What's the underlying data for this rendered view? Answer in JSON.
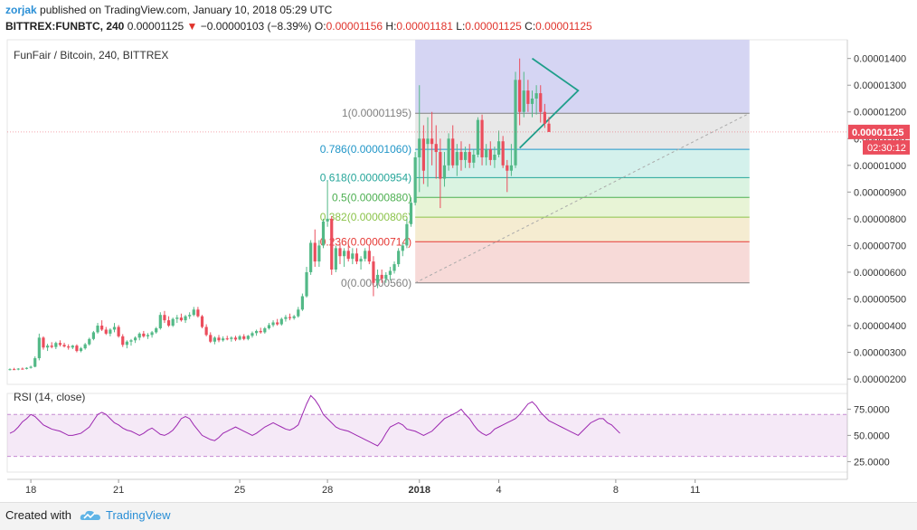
{
  "header": {
    "author": "zorjak",
    "published_text": "published on TradingView.com, January 10, 2018 05:29 UTC",
    "symbol": "BITTREX:FUNBTC, 240",
    "last": "0.00001125",
    "change_arrow": "▼",
    "change": "−0.00000103 (−8.39%)",
    "o_label": "O:",
    "o_value": "0.00001156",
    "h_label": "H:",
    "h_value": "0.00001181",
    "l_label": "L:",
    "l_value": "0.00001125",
    "c_label": "C:",
    "c_value": "0.00001125"
  },
  "chart_data": {
    "type": "candlestick",
    "title": "FunFair / Bitcoin, 240, BITTREX",
    "ylim": [
      1.8e-06,
      1.47e-05
    ],
    "y_ticks": [
      "0.00000200",
      "0.00000300",
      "0.00000400",
      "0.00000500",
      "0.00000600",
      "0.00000700",
      "0.00000800",
      "0.00000900",
      "0.00001000",
      "0.00001100",
      "0.00001200",
      "0.00001300",
      "0.00001400"
    ],
    "x_ticks": [
      "18",
      "21",
      "25",
      "28",
      "2018",
      "4",
      "8",
      "11"
    ],
    "last_price_label": "0.00001125",
    "countdown": "02:30:12",
    "fib_levels": [
      {
        "label": "1(0.00001195)",
        "price": 1.195e-05,
        "color": "#808080"
      },
      {
        "label": "0.786(0.00001060)",
        "price": 1.06e-05,
        "color": "#2196c8"
      },
      {
        "label": "0.618(0.00000954)",
        "price": 9.54e-06,
        "color": "#26a69a"
      },
      {
        "label": "0.5(0.00000880)",
        "price": 8.8e-06,
        "color": "#4caf50"
      },
      {
        "label": "0.382(0.00000806)",
        "price": 8.06e-06,
        "color": "#8bc34a"
      },
      {
        "label": "0.236(0.00000714)",
        "price": 7.14e-06,
        "color": "#e53935"
      },
      {
        "label": "0(0.00000560)",
        "price": 5.6e-06,
        "color": "#808080"
      }
    ],
    "candles": [
      [
        2.35e-06,
        2.4e-06,
        2.32e-06,
        2.37e-06
      ],
      [
        2.37e-06,
        2.42e-06,
        2.34e-06,
        2.36e-06
      ],
      [
        2.36e-06,
        2.41e-06,
        2.33e-06,
        2.39e-06
      ],
      [
        2.39e-06,
        2.43e-06,
        2.35e-06,
        2.38e-06
      ],
      [
        2.38e-06,
        2.44e-06,
        2.36e-06,
        2.42e-06
      ],
      [
        2.42e-06,
        2.5e-06,
        2.39e-06,
        2.46e-06
      ],
      [
        2.46e-06,
        2.85e-06,
        2.44e-06,
        2.78e-06
      ],
      [
        2.78e-06,
        3.7e-06,
        2.7e-06,
        3.55e-06
      ],
      [
        3.55e-06,
        3.6e-06,
        3.1e-06,
        3.18e-06
      ],
      [
        3.18e-06,
        3.32e-06,
        3.05e-06,
        3.25e-06
      ],
      [
        3.25e-06,
        3.38e-06,
        3.15e-06,
        3.2e-06
      ],
      [
        3.2e-06,
        3.4e-06,
        3.12e-06,
        3.35e-06
      ],
      [
        3.35e-06,
        3.45e-06,
        3.22e-06,
        3.28e-06
      ],
      [
        3.28e-06,
        3.36e-06,
        3.18e-06,
        3.22e-06
      ],
      [
        3.22e-06,
        3.3e-06,
        3.1e-06,
        3.18e-06
      ],
      [
        3.18e-06,
        3.28e-06,
        3.12e-06,
        3.25e-06
      ],
      [
        3.25e-06,
        3.3e-06,
        3e-06,
        3.05e-06
      ],
      [
        3.05e-06,
        3.2e-06,
        3e-06,
        3.15e-06
      ],
      [
        3.15e-06,
        3.35e-06,
        3.1e-06,
        3.3e-06
      ],
      [
        3.3e-06,
        3.55e-06,
        3.25e-06,
        3.5e-06
      ],
      [
        3.5e-06,
        3.8e-06,
        3.45e-06,
        3.75e-06
      ],
      [
        3.75e-06,
        4.1e-06,
        3.7e-06,
        4e-06
      ],
      [
        4e-06,
        4.2e-06,
        3.8e-06,
        3.85e-06
      ],
      [
        3.85e-06,
        3.95e-06,
        3.65e-06,
        3.7e-06
      ],
      [
        3.7e-06,
        3.9e-06,
        3.6e-06,
        3.85e-06
      ],
      [
        3.85e-06,
        4.1e-06,
        3.75e-06,
        3.95e-06
      ],
      [
        3.95e-06,
        4.02e-06,
        3.55e-06,
        3.6e-06
      ],
      [
        3.6e-06,
        3.68e-06,
        3.2e-06,
        3.28e-06
      ],
      [
        3.28e-06,
        3.45e-06,
        3.15e-06,
        3.4e-06
      ],
      [
        3.4e-06,
        3.5e-06,
        3.25e-06,
        3.45e-06
      ],
      [
        3.45e-06,
        3.6e-06,
        3.35e-06,
        3.55e-06
      ],
      [
        3.55e-06,
        3.75e-06,
        3.45e-06,
        3.7e-06
      ],
      [
        3.7e-06,
        3.8e-06,
        3.55e-06,
        3.6e-06
      ],
      [
        3.6e-06,
        3.72e-06,
        3.5e-06,
        3.65e-06
      ],
      [
        3.65e-06,
        3.8e-06,
        3.55e-06,
        3.75e-06
      ],
      [
        3.75e-06,
        3.95e-06,
        3.7e-06,
        3.9e-06
      ],
      [
        3.9e-06,
        4.5e-06,
        3.85e-06,
        4.4e-06
      ],
      [
        4.4e-06,
        4.55e-06,
        4.1e-06,
        4.2e-06
      ],
      [
        4.2e-06,
        4.35e-06,
        3.95e-06,
        4e-06
      ],
      [
        4e-06,
        4.3e-06,
        3.95e-06,
        4.25e-06
      ],
      [
        4.25e-06,
        4.4e-06,
        4.1e-06,
        4.3e-06
      ],
      [
        4.3e-06,
        4.45e-06,
        4.15e-06,
        4.2e-06
      ],
      [
        4.2e-06,
        4.4e-06,
        4.1e-06,
        4.35e-06
      ],
      [
        4.35e-06,
        4.5e-06,
        4.25e-06,
        4.4e-06
      ],
      [
        4.4e-06,
        4.7e-06,
        4.35e-06,
        4.6e-06
      ],
      [
        4.6e-06,
        4.7e-06,
        4.3e-06,
        4.35e-06
      ],
      [
        4.35e-06,
        4.4e-06,
        3.9e-06,
        3.95e-06
      ],
      [
        3.95e-06,
        4.05e-06,
        3.6e-06,
        3.65e-06
      ],
      [
        3.65e-06,
        3.75e-06,
        3.35e-06,
        3.4e-06
      ],
      [
        3.4e-06,
        3.6e-06,
        3.3e-06,
        3.55e-06
      ],
      [
        3.55e-06,
        3.65e-06,
        3.38e-06,
        3.45e-06
      ],
      [
        3.45e-06,
        3.6e-06,
        3.4e-06,
        3.52e-06
      ],
      [
        3.52e-06,
        3.62e-06,
        3.45e-06,
        3.5e-06
      ],
      [
        3.5e-06,
        3.6e-06,
        3.4e-06,
        3.55e-06
      ],
      [
        3.55e-06,
        3.62e-06,
        3.42e-06,
        3.48e-06
      ],
      [
        3.48e-06,
        3.65e-06,
        3.45e-06,
        3.6e-06
      ],
      [
        3.6e-06,
        3.68e-06,
        3.45e-06,
        3.5e-06
      ],
      [
        3.5e-06,
        3.65e-06,
        3.45e-06,
        3.62e-06
      ],
      [
        3.62e-06,
        3.78e-06,
        3.55e-06,
        3.72e-06
      ],
      [
        3.72e-06,
        3.85e-06,
        3.62e-06,
        3.8e-06
      ],
      [
        3.8e-06,
        3.92e-06,
        3.7e-06,
        3.75e-06
      ],
      [
        3.75e-06,
        3.95e-06,
        3.7e-06,
        3.9e-06
      ],
      [
        3.9e-06,
        4.1e-06,
        3.85e-06,
        4.02e-06
      ],
      [
        4.02e-06,
        4.2e-06,
        3.95e-06,
        4.12e-06
      ],
      [
        4.12e-06,
        4.25e-06,
        4e-06,
        4.05e-06
      ],
      [
        4.05e-06,
        4.3e-06,
        4e-06,
        4.25e-06
      ],
      [
        4.25e-06,
        4.4e-06,
        4.15e-06,
        4.32e-06
      ],
      [
        4.32e-06,
        4.45e-06,
        4.2e-06,
        4.28e-06
      ],
      [
        4.28e-06,
        4.4e-06,
        4.22e-06,
        4.35e-06
      ],
      [
        4.35e-06,
        4.7e-06,
        4.3e-06,
        4.6e-06
      ],
      [
        4.6e-06,
        5.2e-06,
        4.55e-06,
        5.1e-06
      ],
      [
        5.1e-06,
        6.2e-06,
        5.05e-06,
        6e-06
      ],
      [
        6e-06,
        7.2e-06,
        5.9e-06,
        7.1e-06
      ],
      [
        7.1e-06,
        7.6e-06,
        6.2e-06,
        6.4e-06
      ],
      [
        6.4e-06,
        7.2e-06,
        6.2e-06,
        7e-06
      ],
      [
        7e-06,
        8e-06,
        6.9e-06,
        7.9e-06
      ],
      [
        7.9e-06,
        9.4e-06,
        7.7e-06,
        8e-06
      ],
      [
        8e-06,
        8.1e-06,
        5.9e-06,
        6.1e-06
      ],
      [
        6.1e-06,
        7e-06,
        6e-06,
        6.9e-06
      ],
      [
        6.9e-06,
        7.1e-06,
        6.3e-06,
        6.6e-06
      ],
      [
        6.6e-06,
        6.9e-06,
        6.2e-06,
        6.8e-06
      ],
      [
        6.8e-06,
        7e-06,
        6.4e-06,
        6.5e-06
      ],
      [
        6.5e-06,
        6.9e-06,
        6.3e-06,
        6.7e-06
      ],
      [
        6.7e-06,
        6.9e-06,
        6.3e-06,
        6.4e-06
      ],
      [
        6.4e-06,
        6.6e-06,
        6.1e-06,
        6.5e-06
      ],
      [
        6.5e-06,
        6.9e-06,
        6.4e-06,
        6.8e-06
      ],
      [
        6.8e-06,
        7e-06,
        6.3e-06,
        6.4e-06
      ],
      [
        6.4e-06,
        6.6e-06,
        5.1e-06,
        5.6e-06
      ],
      [
        5.6e-06,
        6.1e-06,
        5.4e-06,
        5.9e-06
      ],
      [
        5.9e-06,
        6.1e-06,
        5.6e-06,
        5.75e-06
      ],
      [
        5.75e-06,
        6e-06,
        5.6e-06,
        5.9e-06
      ],
      [
        5.9e-06,
        6.2e-06,
        5.7e-06,
        6.05e-06
      ],
      [
        6.05e-06,
        6.4e-06,
        5.95e-06,
        6.3e-06
      ],
      [
        6.3e-06,
        6.9e-06,
        6.2e-06,
        6.8e-06
      ],
      [
        6.8e-06,
        7.1e-06,
        6.6e-06,
        7e-06
      ],
      [
        7e-06,
        8e-06,
        6.9e-06,
        7.8e-06
      ],
      [
        7.8e-06,
        8.8e-06,
        7.7e-06,
        8.6e-06
      ],
      [
        8.6e-06,
        1.05e-05,
        8.5e-06,
        1.03e-05
      ],
      [
        1.03e-05,
        1.3e-05,
        9e-06,
        1.1e-05
      ],
      [
        1.1e-05,
        1.15e-05,
        9.3e-06,
        9.8e-06
      ],
      [
        1.08e-05,
        1.18e-05,
        9.2e-06,
        1.1e-05
      ],
      [
        1.1e-05,
        1.2e-05,
        1e-05,
        1.08e-05
      ],
      [
        1.08e-05,
        1.15e-05,
        9.5e-06,
        1.05e-05
      ],
      [
        1.05e-05,
        1.1e-05,
        8.4e-06,
        9.5e-06
      ],
      [
        9.5e-06,
        1.05e-05,
        9.2e-06,
        1e-05
      ],
      [
        1e-05,
        1.12e-05,
        9.8e-06,
        1.1e-05
      ],
      [
        1.1e-05,
        1.15e-05,
        9.9e-06,
        1e-05
      ],
      [
        1e-05,
        1.08e-05,
        9.6e-06,
        1.05e-05
      ],
      [
        1.05e-05,
        1.09e-05,
        9.8e-06,
        1.02e-05
      ],
      [
        1.02e-05,
        1.07e-05,
        9.9e-06,
        1.05e-05
      ],
      [
        1.05e-05,
        1.08e-05,
        9.9e-06,
        1.01e-05
      ],
      [
        1.01e-05,
        1.06e-05,
        9.9e-06,
        1.04e-05
      ],
      [
        1.04e-05,
        1.18e-05,
        1.03e-05,
        1.17e-05
      ],
      [
        1.17e-05,
        1.19e-05,
        1e-05,
        1.03e-05
      ],
      [
        1.03e-05,
        1.08e-05,
        1e-05,
        1.06e-05
      ],
      [
        1.06e-05,
        1.09e-05,
        1e-05,
        1.02e-05
      ],
      [
        1.02e-05,
        1.07e-05,
        9.9e-06,
        1.04e-05
      ],
      [
        1.04e-05,
        1.13e-05,
        1.03e-05,
        1.09e-05
      ],
      [
        1.09e-05,
        1.11e-05,
        9.9e-06,
        1e-05
      ],
      [
        1e-05,
        1.02e-05,
        9e-06,
        9.8e-06
      ],
      [
        9.8e-06,
        1.08e-05,
        9.6e-06,
        1e-05
      ],
      [
        1e-05,
        1.35e-05,
        9.9e-06,
        1.32e-05
      ],
      [
        1.32e-05,
        1.4e-05,
        1.15e-05,
        1.2e-05
      ],
      [
        1.2e-05,
        1.35e-05,
        1.18e-05,
        1.28e-05
      ],
      [
        1.28e-05,
        1.32e-05,
        1.2e-05,
        1.23e-05
      ],
      [
        1.23e-05,
        1.28e-05,
        1.18e-05,
        1.25e-05
      ],
      [
        1.25e-05,
        1.3e-05,
        1.19e-05,
        1.27e-05
      ],
      [
        1.27e-05,
        1.3e-05,
        1.16e-05,
        1.2e-05
      ],
      [
        1.2e-05,
        1.23e-05,
        1.14e-05,
        1.156e-05
      ],
      [
        1.156e-05,
        1.181e-05,
        1.125e-05,
        1.125e-05
      ]
    ],
    "x_tick_candle_index": [
      5,
      26,
      55,
      76,
      98,
      117,
      145,
      164
    ],
    "rsi": {
      "label": "RSI (14, close)",
      "ylim": [
        15,
        90
      ],
      "y_ticks": [
        "25.0000",
        "50.0000",
        "75.0000"
      ],
      "levels": [
        30,
        70
      ],
      "values": [
        52,
        54,
        58,
        63,
        66,
        70,
        68,
        64,
        60,
        58,
        56,
        55,
        54,
        52,
        50,
        50,
        51,
        52,
        55,
        58,
        64,
        70,
        72,
        70,
        66,
        62,
        60,
        57,
        55,
        54,
        52,
        50,
        52,
        55,
        57,
        54,
        51,
        50,
        52,
        55,
        60,
        66,
        68,
        66,
        60,
        55,
        50,
        48,
        46,
        45,
        48,
        52,
        54,
        56,
        58,
        56,
        54,
        52,
        50,
        52,
        55,
        58,
        60,
        62,
        60,
        58,
        56,
        55,
        57,
        60,
        70,
        80,
        88,
        84,
        78,
        70,
        66,
        62,
        58,
        56,
        55,
        54,
        52,
        50,
        48,
        46,
        44,
        42,
        40,
        45,
        52,
        58,
        60,
        62,
        60,
        56,
        55,
        54,
        52,
        50,
        52,
        54,
        58,
        62,
        66,
        68,
        70,
        72,
        75,
        70,
        66,
        60,
        55,
        52,
        50,
        52,
        56,
        58,
        60,
        62,
        64,
        66,
        70,
        75,
        80,
        82,
        78,
        72,
        68,
        64,
        62,
        60,
        58,
        56,
        54,
        52,
        50,
        54,
        58,
        62,
        64,
        66,
        66,
        62,
        60,
        56,
        52
      ]
    }
  },
  "footer": {
    "created_with": "Created with",
    "brand": "TradingView"
  }
}
